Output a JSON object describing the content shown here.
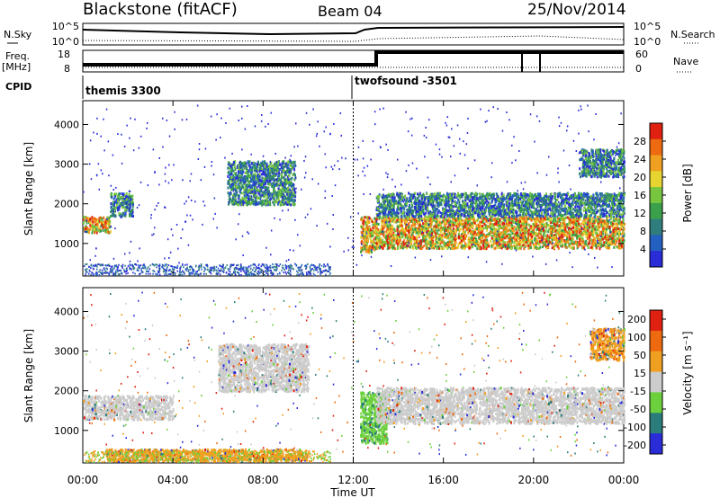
{
  "header": {
    "station": "Blackstone (fitACF)",
    "beam": "Beam 04",
    "date": "25/Nov/2014"
  },
  "status_panel": {
    "nsky_label": "N.Sky",
    "nsky_ticks": [
      "10^5",
      "10^0"
    ],
    "nsearch_label": "N.Search",
    "nsearch_ticks": [
      "10^5",
      "10^0"
    ],
    "freq_label": "Freq.",
    "freq_unit": "[MHz]",
    "freq_ticks": [
      "18",
      "8"
    ],
    "nave_label": "Nave",
    "nave_ticks": [
      "60",
      "0"
    ],
    "cpid_label": "CPID",
    "cpid_segments": [
      {
        "name": "themis 3300",
        "start_hour": 0,
        "end_hour": 12
      },
      {
        "name": "twofsound -3501",
        "start_hour": 12,
        "end_hour": 24
      }
    ]
  },
  "chart_data": [
    {
      "type": "heatmap",
      "name": "power",
      "xlabel": "",
      "ylabel": "Slant Range [km]",
      "xlim": [
        0,
        24
      ],
      "ylim": [
        180,
        4600
      ],
      "yticks": [
        "1000",
        "2000",
        "3000",
        "4000"
      ],
      "colorbar": {
        "label": "Power [dB]",
        "ticks": [
          "4",
          "8",
          "12",
          "16",
          "20",
          "24",
          "28"
        ],
        "colors": [
          "#2a2cd8",
          "#2460c0",
          "#2f7d7d",
          "#3aa04c",
          "#78c640",
          "#e6d430",
          "#f0a020",
          "#ee6a10",
          "#e02010"
        ]
      },
      "scatter_bands": [
        {
          "t0": 0.0,
          "t1": 1.2,
          "r0": 1300,
          "r1": 1700,
          "level": "high"
        },
        {
          "t0": 1.2,
          "t1": 2.2,
          "r0": 1700,
          "r1": 2300,
          "level": "mid"
        },
        {
          "t0": 6.4,
          "t1": 9.4,
          "r0": 2000,
          "r1": 3100,
          "level": "mid"
        },
        {
          "t0": 12.3,
          "t1": 13.0,
          "r0": 800,
          "r1": 1700,
          "level": "high"
        },
        {
          "t0": 13.0,
          "t1": 24.0,
          "r0": 900,
          "r1": 1700,
          "level": "high"
        },
        {
          "t0": 13.0,
          "t1": 24.0,
          "r0": 1700,
          "r1": 2300,
          "level": "mid"
        },
        {
          "t0": 22.0,
          "t1": 24.0,
          "r0": 2700,
          "r1": 3400,
          "level": "mid"
        }
      ]
    },
    {
      "type": "heatmap",
      "name": "velocity",
      "xlabel": "Time UT",
      "ylabel": "Slant Range [km]",
      "xlim": [
        0,
        24
      ],
      "ylim": [
        180,
        4600
      ],
      "xticks": [
        "00:00",
        "04:00",
        "08:00",
        "12:00",
        "16:00",
        "20:00",
        "00:00"
      ],
      "yticks": [
        "1000",
        "2000",
        "3000",
        "4000"
      ],
      "colorbar": {
        "label": "Velocity [m s⁻¹]",
        "ticks": [
          "200",
          "100",
          "50",
          "15",
          "-15",
          "-50",
          "-100",
          "-200"
        ],
        "colors": [
          "#2a2cd8",
          "#2a7d7a",
          "#6cd03c",
          "#cccccc",
          "#f0a020",
          "#ee6a10",
          "#e02010"
        ]
      },
      "scatter_bands": [
        {
          "t0": 0.0,
          "t1": 4.0,
          "r0": 1300,
          "r1": 1900,
          "level": "ground"
        },
        {
          "t0": 6.0,
          "t1": 10.0,
          "r0": 2000,
          "r1": 3200,
          "level": "ground"
        },
        {
          "t0": 12.3,
          "t1": 13.5,
          "r0": 700,
          "r1": 2000,
          "level": "positive"
        },
        {
          "t0": 13.0,
          "t1": 24.0,
          "r0": 1200,
          "r1": 2100,
          "level": "ground"
        },
        {
          "t0": 22.5,
          "t1": 24.0,
          "r0": 2800,
          "r1": 3600,
          "level": "negative"
        },
        {
          "t0": 1.0,
          "t1": 10.0,
          "r0": 250,
          "r1": 550,
          "level": "negative"
        }
      ]
    }
  ]
}
